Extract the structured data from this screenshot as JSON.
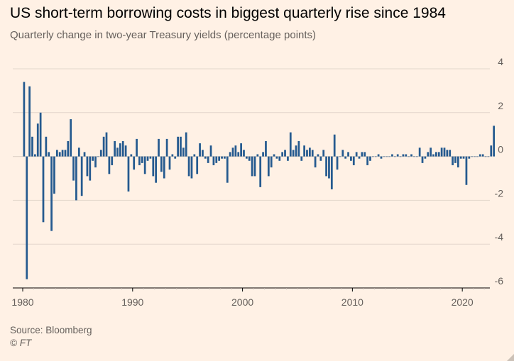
{
  "header": {
    "title": "US short-term borrowing costs in biggest quarterly rise since 1984",
    "subtitle": "Quarterly change in two-year Treasury yields (percentage points)"
  },
  "footer": {
    "source": "Source: Bloomberg",
    "copyright": "© FT"
  },
  "colors": {
    "background": "#fff1e5",
    "bar": "#255a8f",
    "grid": "#e3d6cb",
    "axis": "#000000",
    "text": "#66605c"
  },
  "chart_data": {
    "type": "bar",
    "title": "US short-term borrowing costs in biggest quarterly rise since 1984",
    "subtitle": "Quarterly change in two-year Treasury yields (percentage points)",
    "xlabel": "",
    "ylabel": "",
    "y_axis_position": "right",
    "ylim": [
      -6,
      4
    ],
    "yticks": [
      4,
      2,
      0,
      -2,
      -4,
      -6
    ],
    "xticks": [
      1980,
      1990,
      2000,
      2010,
      2020
    ],
    "xlim": [
      1980,
      2022.25
    ],
    "grid": true,
    "series": [
      {
        "name": "Quarterly change in two-year Treasury yields",
        "start_year": 1980,
        "values": [
          3.4,
          -5.6,
          3.2,
          0.9,
          0.1,
          1.5,
          2.0,
          -3.0,
          0.9,
          0.2,
          -3.4,
          -1.7,
          0.3,
          0.2,
          0.3,
          0.3,
          0.7,
          1.7,
          -1.1,
          -2.0,
          0.4,
          -1.8,
          0.2,
          -0.9,
          -1.1,
          -0.2,
          -0.5,
          0.0,
          0.3,
          0.9,
          1.1,
          -0.8,
          -0.4,
          0.7,
          0.4,
          0.6,
          0.7,
          0.5,
          -1.6,
          0.1,
          -0.6,
          0.8,
          -0.4,
          -0.3,
          -0.8,
          -0.2,
          -0.1,
          -0.9,
          -1.2,
          0.8,
          -0.7,
          -1.0,
          0.8,
          -0.6,
          0.1,
          -0.1,
          0.9,
          0.9,
          0.4,
          1.1,
          -0.9,
          -1.0,
          0.1,
          -0.8,
          0.6,
          0.3,
          -0.1,
          -0.3,
          0.5,
          -0.4,
          -0.3,
          -0.2,
          -0.1,
          -0.1,
          -1.2,
          0.2,
          0.4,
          0.5,
          0.2,
          0.6,
          0.3,
          -0.1,
          -0.2,
          -0.9,
          -0.9,
          0.1,
          -1.4,
          0.2,
          0.7,
          -0.9,
          -0.5,
          0.1,
          -0.1,
          -0.2,
          0.2,
          0.3,
          -0.2,
          1.1,
          0.3,
          0.5,
          0.7,
          -0.2,
          0.5,
          0.3,
          0.4,
          0.3,
          -0.5,
          0.1,
          -0.2,
          0.3,
          -0.9,
          -1.0,
          -1.5,
          1.0,
          -0.6,
          0.0,
          0.3,
          -0.1,
          0.2,
          -0.2,
          -0.4,
          0.2,
          -0.1,
          0.2,
          0.2,
          -0.4,
          -0.2,
          0.0,
          0.0,
          0.1,
          -0.1,
          0.0,
          0.0,
          0.0,
          0.1,
          0.0,
          0.1,
          0.0,
          0.1,
          0.1,
          0.0,
          0.1,
          0.0,
          0.0,
          0.4,
          -0.3,
          -0.1,
          0.2,
          0.4,
          0.1,
          0.2,
          0.2,
          0.4,
          0.4,
          0.3,
          0.3,
          -0.4,
          -0.3,
          -0.5,
          -0.1,
          -0.1,
          -1.3,
          -0.1,
          0.0,
          0.0,
          0.0,
          0.1,
          0.1,
          0.0,
          0.0,
          0.5,
          1.4
        ]
      }
    ]
  }
}
